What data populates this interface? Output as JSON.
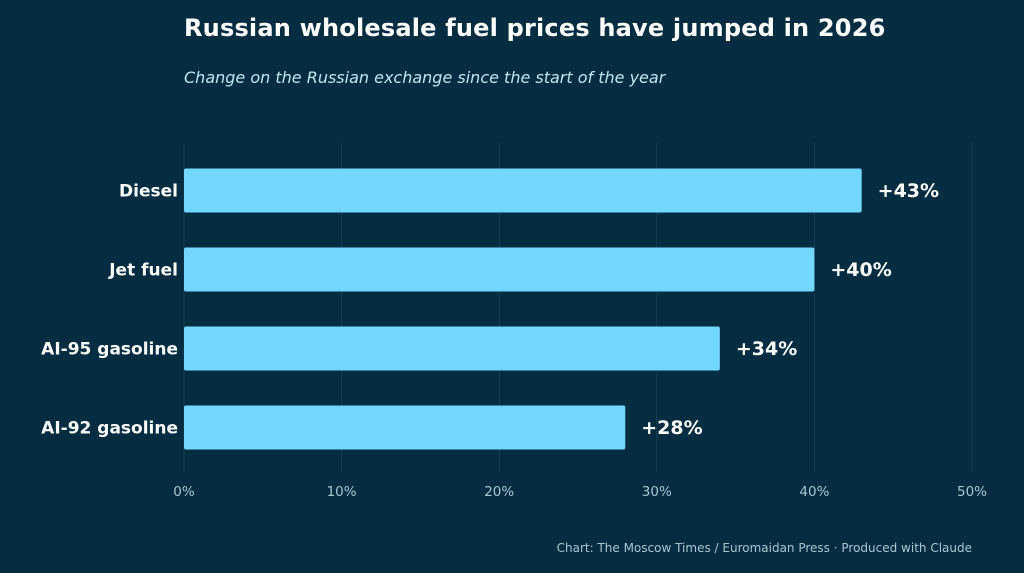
{
  "chart_data": {
    "type": "bar",
    "orientation": "horizontal",
    "title": "Russian wholesale fuel prices have jumped in 2026",
    "subtitle": "Change on the Russian exchange since the start of the year",
    "categories": [
      "Diesel",
      "Jet fuel",
      "AI-95 gasoline",
      "AI-92 gasoline"
    ],
    "values": [
      43,
      40,
      34,
      28
    ],
    "data_labels": [
      "+43%",
      "+40%",
      "+34%",
      "+28%"
    ],
    "xlim": [
      0,
      50
    ],
    "x_ticks": [
      0,
      10,
      20,
      30,
      40,
      50
    ],
    "x_tick_labels": [
      "0%",
      "10%",
      "20%",
      "30%",
      "40%",
      "50%"
    ],
    "grid": true,
    "legend": "none",
    "bar_color": "#73d6fd",
    "source": "Chart: The Moscow Times / Euromaidan Press · Produced with Claude"
  },
  "colors": {
    "background": "#042d42",
    "bar": "#73d6fd",
    "text": "#ffffff",
    "muted_text": "#a9c6d3",
    "grid": "#163f53"
  }
}
